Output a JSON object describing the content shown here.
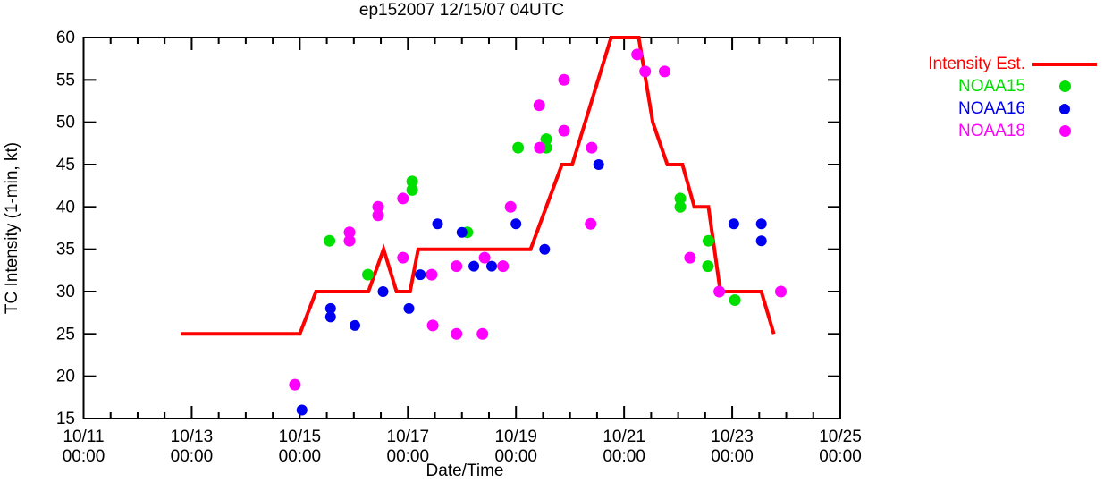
{
  "chart_data": {
    "type": "line",
    "title": "ep152007 12/15/07 04UTC",
    "xlabel": "Date/Time",
    "ylabel": "TC Intensity (1-min, kt)",
    "xlim_days": [
      11,
      25
    ],
    "ylim": [
      15,
      60
    ],
    "grid": false,
    "legend_position": "outside-top-right",
    "background": "#ffffff",
    "axis_color": "#000000",
    "x_ticks": [
      {
        "d": 11,
        "label": "10/11",
        "time": "00:00"
      },
      {
        "d": 13,
        "label": "10/13",
        "time": "00:00"
      },
      {
        "d": 15,
        "label": "10/15",
        "time": "00:00"
      },
      {
        "d": 17,
        "label": "10/17",
        "time": "00:00"
      },
      {
        "d": 19,
        "label": "10/19",
        "time": "00:00"
      },
      {
        "d": 21,
        "label": "10/21",
        "time": "00:00"
      },
      {
        "d": 23,
        "label": "10/23",
        "time": "00:00"
      },
      {
        "d": 25,
        "label": "10/25",
        "time": "00:00"
      }
    ],
    "x_minor_tick_interval_days": 0.5,
    "y_ticks": [
      15,
      20,
      25,
      30,
      35,
      40,
      45,
      50,
      55,
      60
    ],
    "series": [
      {
        "name": "Intensity Est.",
        "type": "line",
        "color": "#ff0000",
        "line_width": 4,
        "points": [
          [
            12.8,
            25
          ],
          [
            15.0,
            25
          ],
          [
            15.3,
            30
          ],
          [
            16.27,
            30
          ],
          [
            16.55,
            35
          ],
          [
            16.79,
            30
          ],
          [
            17.04,
            30
          ],
          [
            17.19,
            35
          ],
          [
            19.27,
            35
          ],
          [
            19.85,
            45
          ],
          [
            20.04,
            45
          ],
          [
            20.76,
            60
          ],
          [
            21.27,
            60
          ],
          [
            21.53,
            50
          ],
          [
            21.8,
            45
          ],
          [
            22.08,
            45
          ],
          [
            22.3,
            40
          ],
          [
            22.56,
            40
          ],
          [
            22.78,
            30
          ],
          [
            23.54,
            30
          ],
          [
            23.77,
            25
          ]
        ]
      },
      {
        "name": "NOAA15",
        "type": "scatter",
        "color": "#00e000",
        "marker_radius": 6.5,
        "points": [
          [
            15.55,
            36
          ],
          [
            16.26,
            32
          ],
          [
            17.08,
            43
          ],
          [
            17.08,
            42
          ],
          [
            18.1,
            37
          ],
          [
            19.04,
            47
          ],
          [
            19.56,
            48
          ],
          [
            19.56,
            47
          ],
          [
            22.04,
            41
          ],
          [
            22.04,
            40
          ],
          [
            22.56,
            36
          ],
          [
            22.55,
            33
          ],
          [
            23.05,
            29
          ]
        ]
      },
      {
        "name": "NOAA16",
        "type": "scatter",
        "color": "#0000f0",
        "marker_radius": 6,
        "points": [
          [
            15.04,
            16
          ],
          [
            15.57,
            28
          ],
          [
            15.57,
            27
          ],
          [
            16.02,
            26
          ],
          [
            16.54,
            30
          ],
          [
            17.02,
            28
          ],
          [
            17.23,
            32
          ],
          [
            17.55,
            38
          ],
          [
            18.0,
            37
          ],
          [
            18.22,
            33
          ],
          [
            18.55,
            33
          ],
          [
            19.0,
            38
          ],
          [
            19.53,
            35
          ],
          [
            20.53,
            45
          ],
          [
            23.03,
            38
          ],
          [
            23.54,
            38
          ],
          [
            23.54,
            36
          ]
        ]
      },
      {
        "name": "NOAA18",
        "type": "scatter",
        "color": "#ff00ff",
        "marker_radius": 6.5,
        "points": [
          [
            14.91,
            19
          ],
          [
            15.92,
            37
          ],
          [
            15.92,
            36
          ],
          [
            16.45,
            40
          ],
          [
            16.45,
            39
          ],
          [
            16.91,
            41
          ],
          [
            16.91,
            34
          ],
          [
            17.44,
            32
          ],
          [
            17.46,
            26
          ],
          [
            17.9,
            25
          ],
          [
            17.9,
            33
          ],
          [
            18.38,
            25
          ],
          [
            18.42,
            34
          ],
          [
            18.76,
            33
          ],
          [
            18.9,
            40
          ],
          [
            19.43,
            52
          ],
          [
            19.44,
            47
          ],
          [
            19.89,
            55
          ],
          [
            19.89,
            49
          ],
          [
            20.38,
            38
          ],
          [
            20.4,
            47
          ],
          [
            21.24,
            58
          ],
          [
            21.39,
            56
          ],
          [
            21.75,
            56
          ],
          [
            22.22,
            34
          ],
          [
            22.76,
            30
          ],
          [
            23.9,
            30
          ]
        ]
      }
    ]
  }
}
